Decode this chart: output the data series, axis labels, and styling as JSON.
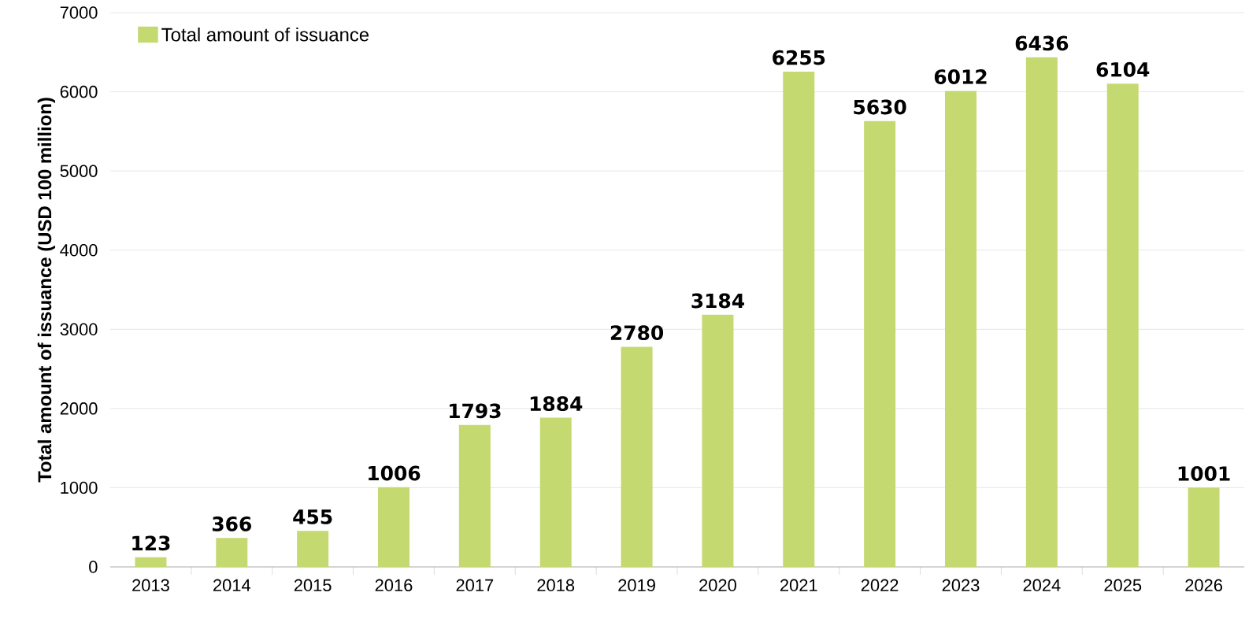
{
  "chart_data": {
    "type": "bar",
    "ylabel": "Total amount of issuance (USD 100 million)",
    "categories": [
      "2013",
      "2014",
      "2015",
      "2016",
      "2017",
      "2018",
      "2019",
      "2020",
      "2021",
      "2022",
      "2023",
      "2024",
      "2025",
      "2026"
    ],
    "series": [
      {
        "name": "Total amount of issuance",
        "color": "#c5d971",
        "values": [
          123,
          366,
          455,
          1006,
          1793,
          1884,
          2780,
          3184,
          6255,
          5630,
          6012,
          6436,
          6104,
          1001
        ]
      }
    ],
    "ylim": [
      0,
      7000
    ],
    "yticks": [
      0,
      1000,
      2000,
      3000,
      4000,
      5000,
      6000,
      7000
    ],
    "grid": "y",
    "legend": "top left",
    "data_labels": true
  }
}
